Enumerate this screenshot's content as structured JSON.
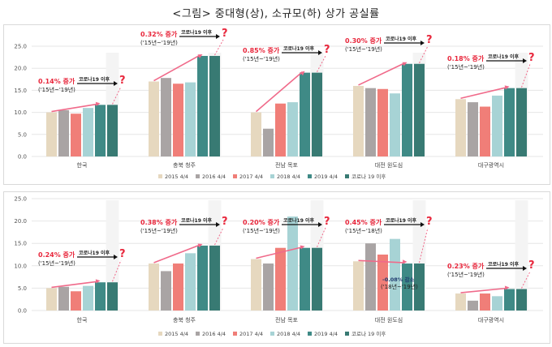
{
  "title": "<그림> 중대형(상), 소규모(하) 상가 공실률",
  "colors": {
    "grid": "#e6e6e6",
    "arrow": "#f06a8a",
    "pct_text": "#e8273c",
    "black_arrow": "#111111",
    "corona_box": "#f4f4f4"
  },
  "chart_data": [
    {
      "type": "bar",
      "name": "중대형",
      "ylim": [
        0,
        25
      ],
      "yticks": [
        "0.0",
        "5.0",
        "10.0",
        "15.0",
        "20.0",
        "25.0"
      ],
      "grid": true,
      "legend_position": "bottom",
      "categories": [
        "한국",
        "충북 청주",
        "전남 목포",
        "대전 원도심",
        "대구광역시"
      ],
      "series": [
        {
          "name": "2015 4/4",
          "color": "#e6d8bf",
          "values": [
            10.0,
            17.0,
            10.0,
            16.0,
            13.0
          ]
        },
        {
          "name": "2016 4/4",
          "color": "#a9a4a4",
          "values": [
            10.5,
            17.8,
            6.3,
            15.5,
            12.3
          ]
        },
        {
          "name": "2017 4/4",
          "color": "#f07e78",
          "values": [
            9.7,
            16.5,
            12.0,
            15.3,
            11.3
          ]
        },
        {
          "name": "2018 4/4",
          "color": "#a7d3d5",
          "values": [
            11.0,
            16.8,
            12.3,
            14.3,
            13.8
          ]
        },
        {
          "name": "2019 4/4",
          "color": "#3f8a86",
          "values": [
            11.7,
            22.8,
            19.0,
            21.0,
            15.5
          ]
        },
        {
          "name": "코로나 19 이후",
          "color": "#387a73",
          "values": [
            11.7,
            22.8,
            19.0,
            21.0,
            15.5
          ]
        }
      ],
      "annotations": [
        {
          "text": "0.14% 증가",
          "period": "('15년~'19년)",
          "covid": "코로나19 이후",
          "q": "?"
        },
        {
          "text": "0.32% 증가",
          "period": "('15년~'19년)",
          "covid": "코로나19 이후",
          "q": "?"
        },
        {
          "text": "0.85% 증가",
          "period": "('15년~'19년)",
          "covid": "코로나19 이후",
          "q": "?"
        },
        {
          "text": "0.30% 증가",
          "period": "('15년~'19년)",
          "covid": "코로나19 이후",
          "q": "?"
        },
        {
          "text": "0.18% 증가",
          "period": "('15년~'19년)",
          "covid": "코로나19 이후",
          "q": "?"
        }
      ]
    },
    {
      "type": "bar",
      "name": "소규모",
      "ylim": [
        0,
        25
      ],
      "yticks": [
        "0.0",
        "5.0",
        "10.0",
        "15.0",
        "20.0",
        "25.0"
      ],
      "grid": true,
      "legend_position": "bottom",
      "categories": [
        "한국",
        "충북 청주",
        "전남 목포",
        "대전 원도심",
        "대구광역시"
      ],
      "series": [
        {
          "name": "2015 4/4",
          "color": "#e6d8bf",
          "values": [
            5.0,
            10.5,
            11.5,
            11.0,
            3.8
          ]
        },
        {
          "name": "2016 4/4",
          "color": "#a9a4a4",
          "values": [
            5.3,
            8.8,
            10.5,
            15.0,
            2.2
          ]
        },
        {
          "name": "2017 4/4",
          "color": "#f07e78",
          "values": [
            4.3,
            10.5,
            14.0,
            12.5,
            3.8
          ]
        },
        {
          "name": "2018 4/4",
          "color": "#a7d3d5",
          "values": [
            5.5,
            12.8,
            21.0,
            16.0,
            3.2
          ]
        },
        {
          "name": "2019 4/4",
          "color": "#3f8a86",
          "values": [
            6.3,
            14.5,
            14.0,
            10.5,
            4.8
          ]
        },
        {
          "name": "코로나 19 이후",
          "color": "#387a73",
          "values": [
            6.3,
            14.5,
            14.0,
            10.5,
            4.8
          ]
        }
      ],
      "annotations": [
        {
          "text": "0.24% 증가",
          "period": "('15년~'19년)",
          "covid": "코로나19 이후",
          "q": "?"
        },
        {
          "text": "0.38% 증가",
          "period": "('15년~'19년)",
          "covid": "코로나19 이후",
          "q": "?"
        },
        {
          "text": "0.20% 증가",
          "period": "('15년~'19년)",
          "covid": "코로나19 이후",
          "q": "?"
        },
        {
          "text": "0.45% 증가",
          "period": "('15년~'18년)",
          "covid": "코로나19 이후",
          "q": "?",
          "extra": "-0.08% 감소",
          "extra_period": "('18년~'19년)"
        },
        {
          "text": "0.23% 증가",
          "period": "('15년~'19년)",
          "covid": "코로나19 이후",
          "q": "?"
        }
      ]
    }
  ]
}
